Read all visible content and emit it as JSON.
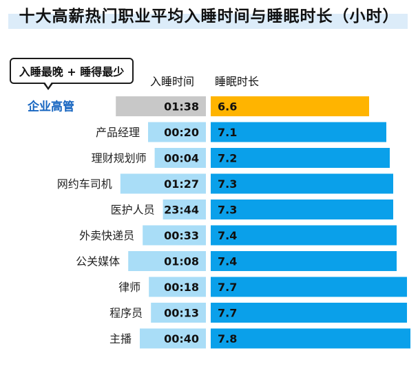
{
  "title": "十大高薪热门职业平均入睡时间与睡眠时长（小时）",
  "callout": "入睡最晚 + 睡得最少",
  "colors": {
    "highlight_time_bar": "#c8c8c8",
    "highlight_sleep_bar": "#ffb400",
    "highlight_label": "#1665c0",
    "time_bar": "#a9ddf7",
    "sleep_bar": "#0aa0ea"
  },
  "chart_data": {
    "type": "bar",
    "series_headers": [
      "入睡时间",
      "睡眠时长"
    ],
    "categories": [
      "企业高管",
      "产品经理",
      "理财规划师",
      "网约车司机",
      "医护人员",
      "外卖快递员",
      "公关媒体",
      "律师",
      "程序员",
      "主播"
    ],
    "bedtime": [
      "01:38",
      "00:20",
      "00:04",
      "01:27",
      "23:44",
      "00:33",
      "01:08",
      "00:18",
      "00:13",
      "00:40"
    ],
    "sleep_hours": [
      6.6,
      7.1,
      7.2,
      7.3,
      7.3,
      7.4,
      7.4,
      7.7,
      7.7,
      7.8
    ],
    "highlight_category": "企业高管"
  }
}
